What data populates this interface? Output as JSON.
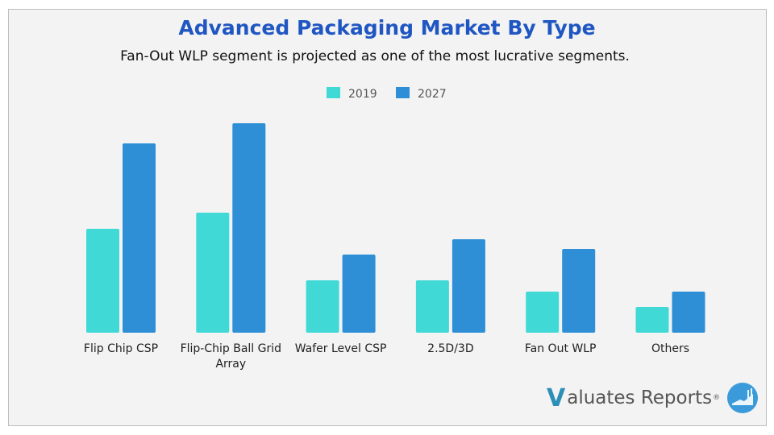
{
  "title": "Advanced Packaging Market By Type",
  "subtitle": "Fan-Out WLP segment is projected as one of the most lucrative segments.",
  "logo": {
    "v": "V",
    "text": "aluates Reports",
    "reg": "®"
  },
  "chart_data": {
    "type": "bar",
    "categories": [
      "Flip Chip CSP",
      "Flip-Chip Ball Grid Array",
      "Wafer Level CSP",
      "2.5D/3D",
      "Fan Out WLP",
      "Others"
    ],
    "series": [
      {
        "name": "2019",
        "color": "#40d9d6",
        "values": [
          129,
          149,
          65,
          65,
          51,
          32
        ]
      },
      {
        "name": "2027",
        "color": "#2e8fd6",
        "values": [
          235,
          260,
          97,
          116,
          104,
          51
        ]
      }
    ],
    "ylim": [
      0,
      270
    ],
    "y_axis_shown": false,
    "grid": false,
    "legend": "top-center",
    "note_values": "relative bar heights; no value axis printed"
  }
}
